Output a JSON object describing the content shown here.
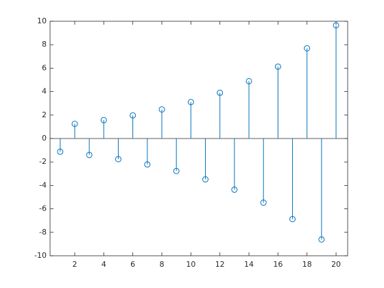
{
  "chart_data": {
    "type": "stem",
    "color": "#0072bd",
    "x": [
      1,
      2,
      3,
      4,
      5,
      6,
      7,
      8,
      9,
      10,
      11,
      12,
      13,
      14,
      15,
      16,
      17,
      18,
      19,
      20
    ],
    "values": [
      -1.12,
      1.25,
      -1.4,
      1.57,
      -1.76,
      1.97,
      -2.21,
      2.48,
      -2.77,
      3.11,
      -3.48,
      3.9,
      -4.36,
      4.89,
      -5.47,
      6.13,
      -6.87,
      7.69,
      -8.61,
      9.65
    ],
    "xlim": [
      0.3,
      20.8
    ],
    "xticks": [
      2,
      4,
      6,
      8,
      10,
      12,
      14,
      16,
      18,
      20
    ],
    "ylim": [
      -10,
      10
    ],
    "yticks": [
      -10,
      -8,
      -6,
      -4,
      -2,
      0,
      2,
      4,
      6,
      8,
      10
    ]
  }
}
